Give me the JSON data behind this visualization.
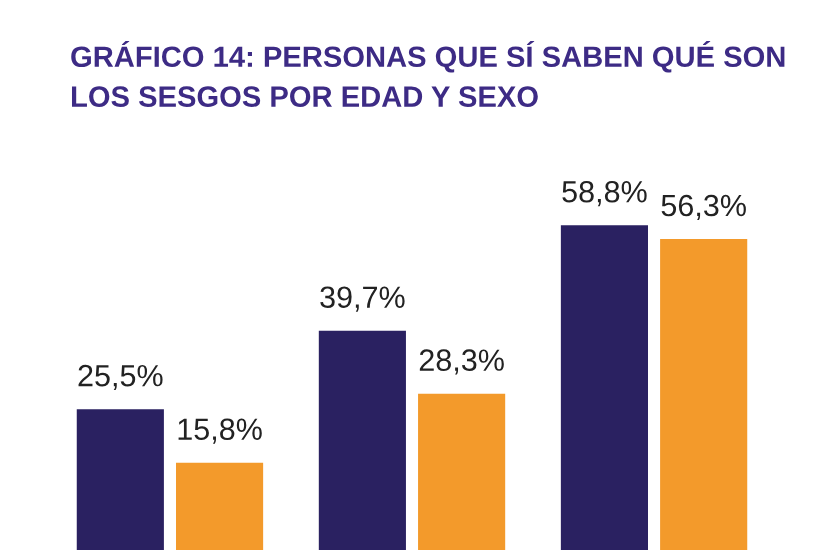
{
  "chart_data": {
    "type": "bar",
    "title": "GRÁFICO 14: PERSONAS QUE SÍ SABEN QUÉ SON\nLOS SESGOS POR EDAD Y SEXO",
    "categories": [
      null,
      null,
      null
    ],
    "series": [
      {
        "color": "#2a2161",
        "values": [
          25.5,
          39.7,
          58.8
        ],
        "value_labels": [
          "25,5%",
          "39,7%",
          "58,8%"
        ]
      },
      {
        "color": "#f39a2b",
        "values": [
          15.8,
          28.3,
          56.3
        ],
        "value_labels": [
          "15,8%",
          "28,3%",
          "56,3%"
        ]
      }
    ],
    "tick_labels": false,
    "grid": false,
    "legend": false
  }
}
